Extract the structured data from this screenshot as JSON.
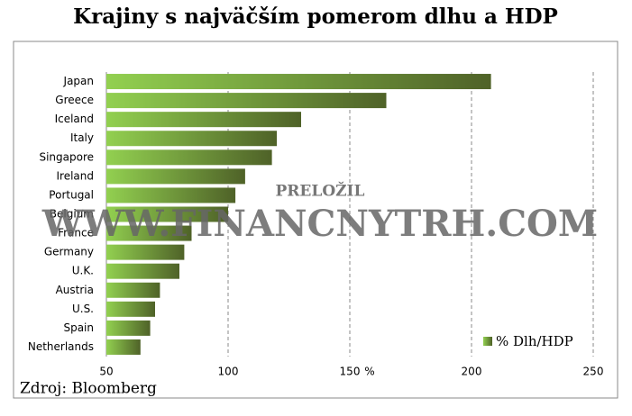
{
  "chart_data": {
    "type": "hbar",
    "title": "Krajiny s najväčším pomerom dlhu a HDP",
    "categories": [
      "Japan",
      "Greece",
      "Iceland",
      "Italy",
      "Singapore",
      "Ireland",
      "Portugal",
      "Belgium",
      "France",
      "Germany",
      "U.K.",
      "Austria",
      "U.S.",
      "Spain",
      "Netherlands"
    ],
    "series": [
      {
        "name": "% Dlh/HDP",
        "color": [
          "#92d050",
          "#4f6228"
        ],
        "values": [
          208,
          165,
          130,
          120,
          118,
          107,
          103,
          100,
          85,
          82,
          80,
          72,
          70,
          68,
          64
        ]
      }
    ],
    "xlim": [
      50,
      250
    ],
    "xticks": [
      50,
      100,
      150,
      200,
      250
    ],
    "xlabel": "%",
    "grid": true,
    "source": "Zdroj: Bloomberg",
    "watermark": [
      "PRELOŽIL",
      "WWW.FINANCNYTRH.COM"
    ]
  }
}
